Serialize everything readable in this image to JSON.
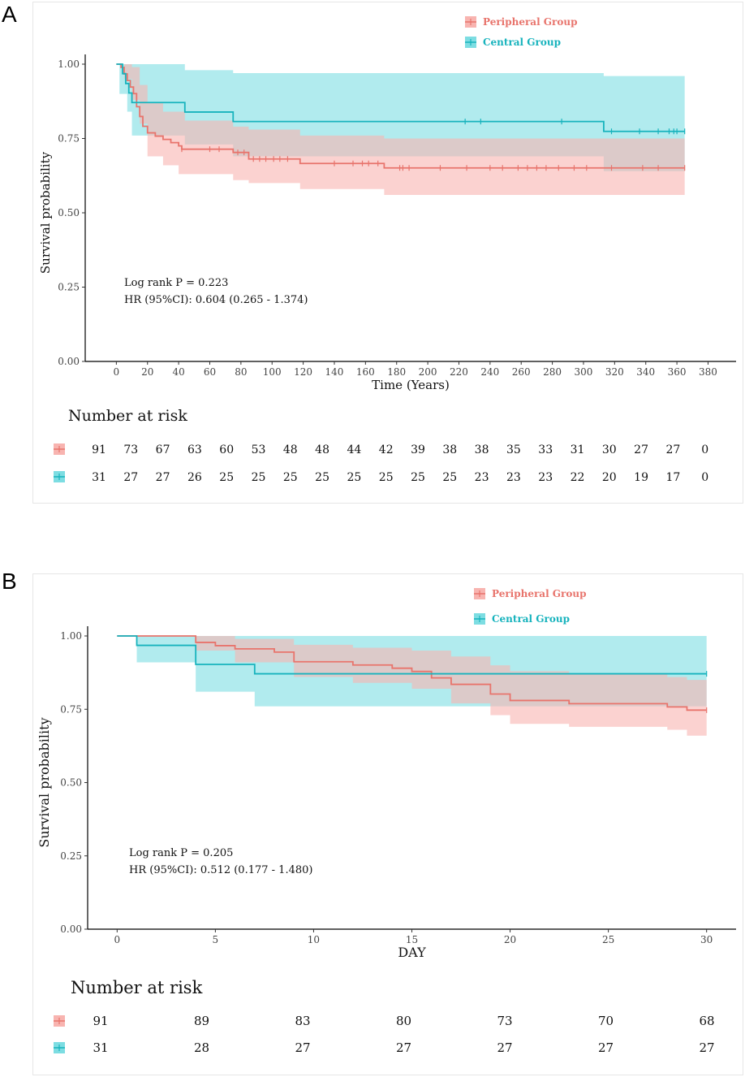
{
  "panel_a_label": "A",
  "panel_b_label": "B",
  "colors": {
    "peripheral": "#e8746c",
    "central": "#17b3bd",
    "peripheral_ci": "#f8b4b0",
    "central_ci": "#7ddde2",
    "overlap": "#9fb3b0"
  },
  "chart_data": [
    {
      "type": "line",
      "subtype": "kaplan-meier",
      "title": "",
      "xlabel": "Time (Years)",
      "ylabel": "Survival probability",
      "xlim": [
        -20,
        398
      ],
      "ylim": [
        0,
        1
      ],
      "xticks": [
        0,
        20,
        40,
        60,
        80,
        100,
        120,
        140,
        160,
        180,
        200,
        220,
        240,
        260,
        280,
        300,
        320,
        340,
        360,
        380
      ],
      "yticks": [
        "0.00",
        "0.25",
        "0.50",
        "0.75",
        "1.00"
      ],
      "legend": [
        "Peripheral Group",
        "Central Group"
      ],
      "annotations": [
        "Log rank P = 0.223",
        "HR (95%CI): 0.604 (0.265 - 1.374)"
      ],
      "series": [
        {
          "name": "Peripheral Group",
          "steps": [
            [
              0,
              1.0
            ],
            [
              3,
              0.989
            ],
            [
              5,
              0.967
            ],
            [
              7,
              0.945
            ],
            [
              9,
              0.923
            ],
            [
              11,
              0.901
            ],
            [
              13,
              0.857
            ],
            [
              15,
              0.824
            ],
            [
              17,
              0.791
            ],
            [
              20,
              0.769
            ],
            [
              25,
              0.758
            ],
            [
              30,
              0.747
            ],
            [
              35,
              0.736
            ],
            [
              40,
              0.725
            ],
            [
              42,
              0.714
            ],
            [
              75,
              0.703
            ],
            [
              85,
              0.681
            ],
            [
              118,
              0.666
            ],
            [
              172,
              0.651
            ],
            [
              365,
              0.651
            ]
          ],
          "ci_upper": [
            [
              0,
              1.0
            ],
            [
              5,
              1.0
            ],
            [
              10,
              0.99
            ],
            [
              15,
              0.93
            ],
            [
              20,
              0.87
            ],
            [
              30,
              0.84
            ],
            [
              44,
              0.81
            ],
            [
              75,
              0.79
            ],
            [
              85,
              0.78
            ],
            [
              118,
              0.76
            ],
            [
              172,
              0.75
            ],
            [
              365,
              0.75
            ]
          ],
          "ci_lower": [
            [
              0,
              1.0
            ],
            [
              5,
              0.95
            ],
            [
              10,
              0.88
            ],
            [
              15,
              0.8
            ],
            [
              20,
              0.69
            ],
            [
              30,
              0.66
            ],
            [
              40,
              0.63
            ],
            [
              75,
              0.61
            ],
            [
              85,
              0.6
            ],
            [
              118,
              0.58
            ],
            [
              172,
              0.56
            ],
            [
              365,
              0.56
            ]
          ],
          "censor_times": [
            42,
            60,
            66,
            78,
            82,
            88,
            92,
            96,
            101,
            105,
            110,
            140,
            152,
            158,
            162,
            168,
            182,
            184,
            188,
            208,
            225,
            240,
            248,
            258,
            264,
            270,
            276,
            284,
            294,
            302,
            318,
            338,
            348,
            365
          ]
        },
        {
          "name": "Central Group",
          "steps": [
            [
              0,
              1.0
            ],
            [
              4,
              0.968
            ],
            [
              6,
              0.935
            ],
            [
              8,
              0.903
            ],
            [
              10,
              0.871
            ],
            [
              44,
              0.839
            ],
            [
              75,
              0.807
            ],
            [
              313,
              0.774
            ],
            [
              365,
              0.774
            ]
          ],
          "ci_upper": [
            [
              0,
              1.0
            ],
            [
              44,
              0.98
            ],
            [
              75,
              0.97
            ],
            [
              313,
              0.96
            ],
            [
              365,
              0.94
            ]
          ],
          "ci_lower": [
            [
              0,
              1.0
            ],
            [
              2,
              0.9
            ],
            [
              7,
              0.84
            ],
            [
              10,
              0.76
            ],
            [
              44,
              0.73
            ],
            [
              75,
              0.69
            ],
            [
              313,
              0.64
            ],
            [
              365,
              0.64
            ]
          ],
          "censor_times": [
            224,
            234,
            286,
            318,
            336,
            348,
            355,
            358,
            360,
            365
          ]
        }
      ],
      "risk_table": {
        "title": "Number at risk",
        "times": [
          0,
          20,
          40,
          60,
          80,
          100,
          120,
          140,
          160,
          180,
          200,
          220,
          240,
          260,
          280,
          300,
          320,
          340,
          360,
          380
        ],
        "rows": [
          {
            "group": "Peripheral Group",
            "values": [
              "91",
              "73",
              "67",
              "63",
              "60",
              "53",
              "48",
              "48",
              "44",
              "42",
              "39",
              "38",
              "38",
              "35",
              "33",
              "31",
              "30",
              "27",
              "27",
              "0"
            ]
          },
          {
            "group": "Central Group",
            "values": [
              "31",
              "27",
              "27",
              "26",
              "25",
              "25",
              "25",
              "25",
              "25",
              "25",
              "25",
              "25",
              "23",
              "23",
              "23",
              "22",
              "20",
              "19",
              "17",
              "0"
            ]
          }
        ]
      }
    },
    {
      "type": "line",
      "subtype": "kaplan-meier",
      "title": "",
      "xlabel": "DAY",
      "ylabel": "Survival probability",
      "xlim": [
        -1.5,
        31.5
      ],
      "ylim": [
        0,
        1
      ],
      "xticks": [
        0,
        5,
        10,
        15,
        20,
        25,
        30
      ],
      "yticks": [
        "0.00",
        "0.25",
        "0.50",
        "0.75",
        "1.00"
      ],
      "legend": [
        "Peripheral Group",
        "Central Group"
      ],
      "annotations": [
        "Log rank P = 0.205",
        "HR (95%CI): 0.512 (0.177 - 1.480)"
      ],
      "series": [
        {
          "name": "Peripheral Group",
          "steps": [
            [
              0,
              1.0
            ],
            [
              4,
              0.978
            ],
            [
              5,
              0.967
            ],
            [
              6,
              0.956
            ],
            [
              8,
              0.945
            ],
            [
              9,
              0.912
            ],
            [
              12,
              0.901
            ],
            [
              14,
              0.89
            ],
            [
              15,
              0.879
            ],
            [
              16,
              0.857
            ],
            [
              17,
              0.835
            ],
            [
              19,
              0.802
            ],
            [
              20,
              0.78
            ],
            [
              23,
              0.769
            ],
            [
              28,
              0.758
            ],
            [
              29,
              0.747
            ],
            [
              30,
              0.747
            ]
          ],
          "ci_upper": [
            [
              0,
              1.0
            ],
            [
              4,
              1.0
            ],
            [
              6,
              0.99
            ],
            [
              9,
              0.97
            ],
            [
              12,
              0.96
            ],
            [
              15,
              0.95
            ],
            [
              17,
              0.93
            ],
            [
              19,
              0.9
            ],
            [
              20,
              0.88
            ],
            [
              23,
              0.87
            ],
            [
              28,
              0.86
            ],
            [
              29,
              0.85
            ],
            [
              30,
              0.85
            ]
          ],
          "ci_lower": [
            [
              0,
              1.0
            ],
            [
              4,
              0.95
            ],
            [
              6,
              0.91
            ],
            [
              9,
              0.86
            ],
            [
              12,
              0.84
            ],
            [
              15,
              0.82
            ],
            [
              17,
              0.77
            ],
            [
              19,
              0.73
            ],
            [
              20,
              0.7
            ],
            [
              23,
              0.69
            ],
            [
              28,
              0.68
            ],
            [
              29,
              0.66
            ],
            [
              30,
              0.66
            ]
          ],
          "censor_times": [
            30
          ]
        },
        {
          "name": "Central Group",
          "steps": [
            [
              0,
              1.0
            ],
            [
              1,
              0.968
            ],
            [
              4,
              0.903
            ],
            [
              7,
              0.871
            ],
            [
              30,
              0.871
            ]
          ],
          "ci_upper": [
            [
              0,
              1.0
            ],
            [
              30,
              1.0
            ]
          ],
          "ci_lower": [
            [
              0,
              1.0
            ],
            [
              1,
              0.91
            ],
            [
              4,
              0.81
            ],
            [
              7,
              0.76
            ],
            [
              30,
              0.76
            ]
          ],
          "censor_times": [
            30
          ]
        }
      ],
      "risk_table": {
        "title": "Number at risk",
        "times": [
          0,
          5,
          10,
          15,
          20,
          25,
          30
        ],
        "rows": [
          {
            "group": "Peripheral Group",
            "values": [
              "91",
              "89",
              "83",
              "80",
              "73",
              "70",
              "68"
            ]
          },
          {
            "group": "Central Group",
            "values": [
              "31",
              "28",
              "27",
              "27",
              "27",
              "27",
              "27"
            ]
          }
        ]
      }
    }
  ]
}
